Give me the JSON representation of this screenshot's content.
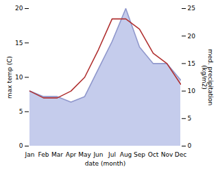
{
  "chart_data": {
    "type": "line",
    "xlabel": "date (month)",
    "ylabel": "max temp (C)",
    "y2label": "med. precipitation\n(kg/m2)",
    "categories": [
      "Jan",
      "Feb",
      "Mar",
      "Apr",
      "May",
      "Jun",
      "Jul",
      "Aug",
      "Sep",
      "Oct",
      "Nov",
      "Dec"
    ],
    "ylim": [
      0,
      20
    ],
    "yticks": [
      0,
      5,
      10,
      15,
      20
    ],
    "y2lim": [
      0,
      25
    ],
    "y2ticks": [
      0,
      5,
      10,
      15,
      20,
      25
    ],
    "grid": false,
    "series": [
      {
        "type": "area",
        "axis": "y2",
        "color": "#c5ccec",
        "values": [
          10.0,
          9.0,
          9.0,
          8.0,
          9.0,
          14.0,
          19.0,
          25.0,
          18.0,
          15.0,
          15.0,
          12.0
        ]
      },
      {
        "type": "line",
        "axis": "y2",
        "color": "#9098cc",
        "values": [
          10.0,
          9.0,
          9.0,
          8.0,
          9.0,
          14.0,
          19.0,
          25.0,
          18.0,
          15.0,
          15.0,
          12.0
        ]
      },
      {
        "type": "line",
        "color": "#b03030",
        "values": [
          8.0,
          7.0,
          7.0,
          8.0,
          10.0,
          14.0,
          18.5,
          18.5,
          17.0,
          13.5,
          12.0,
          9.0
        ]
      }
    ]
  }
}
